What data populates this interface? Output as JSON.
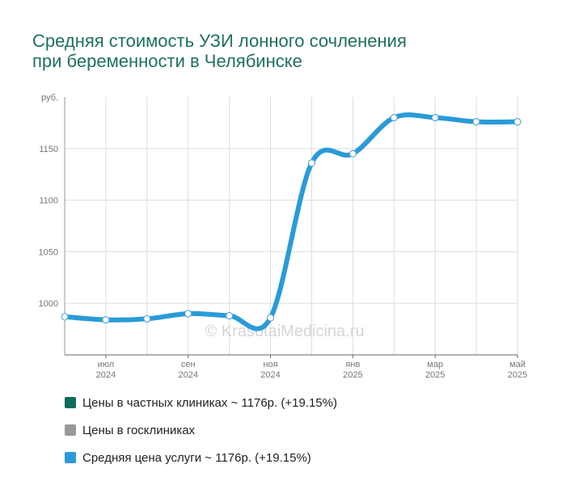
{
  "title_lines": [
    "Средняя стоимость УЗИ лонного сочленения",
    "при беременности в Челябинске"
  ],
  "watermark": "© KrasotaiMedicina.ru",
  "colors": {
    "title": "#1f6f63",
    "private": "#0f6b5c",
    "public": "#9a9a9a",
    "average": "#2a9bd8"
  },
  "legend": [
    {
      "label": "Цены в частных клиниках ~ 1176р. (+19.15%)",
      "color": "#0f6b5c"
    },
    {
      "label": "Цены в госклиниках",
      "color": "#9a9a9a"
    },
    {
      "label": "Средняя цена услуги ~ 1176р. (+19.15%)",
      "color": "#2a9bd8"
    }
  ],
  "chart_data": {
    "type": "line",
    "y_unit_label": "руб.",
    "ylim": [
      950,
      1200
    ],
    "yticks": [
      1000,
      1050,
      1100,
      1150
    ],
    "x_ticks": [
      {
        "line1": "июл",
        "line2": "2024",
        "index": 1
      },
      {
        "line1": "сен",
        "line2": "2024",
        "index": 3
      },
      {
        "line1": "ноя",
        "line2": "2024",
        "index": 5
      },
      {
        "line1": "янв",
        "line2": "2025",
        "index": 7
      },
      {
        "line1": "мар",
        "line2": "2025",
        "index": 9
      },
      {
        "line1": "май",
        "line2": "2025",
        "index": 11
      }
    ],
    "grid": true,
    "series": [
      {
        "name": "Средняя цена услуги",
        "points": [
          {
            "x": "июн 2024",
            "y": 987
          },
          {
            "x": "июл 2024",
            "y": 984
          },
          {
            "x": "авг 2024",
            "y": 985
          },
          {
            "x": "сен 2024",
            "y": 990
          },
          {
            "x": "окт 2024",
            "y": 988
          },
          {
            "x": "ноя 2024",
            "y": 986
          },
          {
            "x": "дек 2024",
            "y": 1136
          },
          {
            "x": "янв 2025",
            "y": 1145
          },
          {
            "x": "фев 2025",
            "y": 1180
          },
          {
            "x": "мар 2025",
            "y": 1180
          },
          {
            "x": "апр 2025",
            "y": 1176
          },
          {
            "x": "май 2025",
            "y": 1176
          }
        ]
      }
    ]
  }
}
